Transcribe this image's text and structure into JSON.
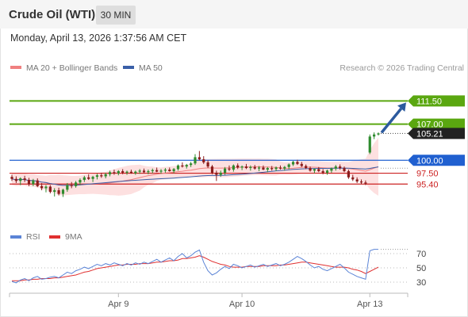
{
  "header": {
    "title": "Crude Oil (WTI)",
    "timeframe": "30 MIN"
  },
  "datetime": "Monday, April 13, 2026 1:37:56 AM CET",
  "legend": {
    "bollinger_label": "MA 20 + Bollinger Bands",
    "ma50_label": "MA 50",
    "rsi_label": "RSI",
    "ma9_label": "9MA",
    "credit": "Research © 2026 Trading Central"
  },
  "colors": {
    "resistance": "#5aa710",
    "support_strong": "#2060d0",
    "support_weak": "#cc2222",
    "candle_up": "#2e8b2e",
    "candle_down": "#8b1c1c",
    "ma20": "#f08080",
    "ma50": "#3a5fa8",
    "rsi": "#5b84d6",
    "rsi_ma": "#e03030",
    "arrow": "#2c5a9e",
    "current": "#444444"
  },
  "chart_data": [
    {
      "type": "candlestick",
      "title": "Crude Oil (WTI)",
      "timeframe": "30 MIN",
      "ylim": [
        87.0,
        116.0
      ],
      "x_ticks": [
        "Apr 9",
        "Apr 10",
        "Apr 13"
      ],
      "current_price": "105.21",
      "levels": [
        {
          "label": "111.50",
          "value": 111.5,
          "kind": "resistance"
        },
        {
          "label": "107.00",
          "value": 107.0,
          "kind": "resistance"
        },
        {
          "label": "100.00",
          "value": 100.0,
          "kind": "support_strong"
        },
        {
          "label": "97.50",
          "value": 97.5,
          "kind": "support_weak"
        },
        {
          "label": "95.40",
          "value": 95.4,
          "kind": "support_weak"
        }
      ],
      "target_arrow": {
        "from": 105.2,
        "to": 111.5
      },
      "candles": [
        [
          96.8,
          97.2,
          96.0,
          96.4
        ],
        [
          96.4,
          96.9,
          95.6,
          96.0
        ],
        [
          96.0,
          96.7,
          95.2,
          96.5
        ],
        [
          96.5,
          97.0,
          95.8,
          96.2
        ],
        [
          96.2,
          96.6,
          95.0,
          95.4
        ],
        [
          95.4,
          96.4,
          95.0,
          96.1
        ],
        [
          96.1,
          96.5,
          94.8,
          95.0
        ],
        [
          95.0,
          95.6,
          94.2,
          94.6
        ],
        [
          94.6,
          95.2,
          93.8,
          94.9
        ],
        [
          94.9,
          95.2,
          93.6,
          93.9
        ],
        [
          93.9,
          94.6,
          93.0,
          94.2
        ],
        [
          94.2,
          94.7,
          93.2,
          93.5
        ],
        [
          93.5,
          94.5,
          92.9,
          94.3
        ],
        [
          94.3,
          95.6,
          93.9,
          95.2
        ],
        [
          95.2,
          95.8,
          94.6,
          95.0
        ],
        [
          95.0,
          96.0,
          94.7,
          95.7
        ],
        [
          95.7,
          96.5,
          95.2,
          96.2
        ],
        [
          96.2,
          97.0,
          95.8,
          96.7
        ],
        [
          96.7,
          97.3,
          96.2,
          96.4
        ],
        [
          96.4,
          97.0,
          95.8,
          96.8
        ],
        [
          96.8,
          97.4,
          96.3,
          97.1
        ],
        [
          97.1,
          97.6,
          96.6,
          96.9
        ],
        [
          96.9,
          97.6,
          96.5,
          97.3
        ],
        [
          97.3,
          98.0,
          96.9,
          97.7
        ],
        [
          97.7,
          98.2,
          97.2,
          97.5
        ],
        [
          97.5,
          98.1,
          97.1,
          97.9
        ],
        [
          97.9,
          98.3,
          97.3,
          97.6
        ],
        [
          97.6,
          98.0,
          97.2,
          97.8
        ],
        [
          97.8,
          98.2,
          97.4,
          97.5
        ],
        [
          97.5,
          98.0,
          97.2,
          97.8
        ],
        [
          97.8,
          98.3,
          97.4,
          98.0
        ],
        [
          98.0,
          98.4,
          97.5,
          97.7
        ],
        [
          97.7,
          98.2,
          97.3,
          97.9
        ],
        [
          97.9,
          98.4,
          97.5,
          98.1
        ],
        [
          98.1,
          98.6,
          97.7,
          97.8
        ],
        [
          97.8,
          98.3,
          97.4,
          98.0
        ],
        [
          98.0,
          98.5,
          97.6,
          98.2
        ],
        [
          98.2,
          98.6,
          97.8,
          97.9
        ],
        [
          97.9,
          98.5,
          97.5,
          98.3
        ],
        [
          98.3,
          99.2,
          98.0,
          99.0
        ],
        [
          99.0,
          99.6,
          98.6,
          98.8
        ],
        [
          98.8,
          99.3,
          98.4,
          99.1
        ],
        [
          99.1,
          99.7,
          98.7,
          99.4
        ],
        [
          99.4,
          101.2,
          99.1,
          100.6
        ],
        [
          100.6,
          101.8,
          100.0,
          100.2
        ],
        [
          100.2,
          100.8,
          99.3,
          99.6
        ],
        [
          99.6,
          100.0,
          98.5,
          98.8
        ],
        [
          98.8,
          99.1,
          97.3,
          97.6
        ],
        [
          97.6,
          98.0,
          96.0,
          97.2
        ],
        [
          97.2,
          98.0,
          96.8,
          97.6
        ],
        [
          97.6,
          98.7,
          97.2,
          98.4
        ],
        [
          98.4,
          99.0,
          97.9,
          98.2
        ],
        [
          98.2,
          99.2,
          97.8,
          99.0
        ],
        [
          99.0,
          99.4,
          98.3,
          98.6
        ],
        [
          98.6,
          99.0,
          98.1,
          98.8
        ],
        [
          98.8,
          99.3,
          98.3,
          98.5
        ],
        [
          98.5,
          99.0,
          98.0,
          98.7
        ],
        [
          98.7,
          99.1,
          98.2,
          98.4
        ],
        [
          98.4,
          98.9,
          97.9,
          98.6
        ],
        [
          98.6,
          99.0,
          98.1,
          98.2
        ],
        [
          98.2,
          98.7,
          97.7,
          98.5
        ],
        [
          98.5,
          98.9,
          98.0,
          98.3
        ],
        [
          98.3,
          98.8,
          97.9,
          98.6
        ],
        [
          98.6,
          99.0,
          98.2,
          98.4
        ],
        [
          98.4,
          98.9,
          98.0,
          98.7
        ],
        [
          98.7,
          99.4,
          98.3,
          99.2
        ],
        [
          99.2,
          99.9,
          98.9,
          99.7
        ],
        [
          99.7,
          100.1,
          99.1,
          99.3
        ],
        [
          99.3,
          99.7,
          98.7,
          98.9
        ],
        [
          98.9,
          99.2,
          98.3,
          98.5
        ],
        [
          98.5,
          98.8,
          97.8,
          98.0
        ],
        [
          98.0,
          98.4,
          97.5,
          98.3
        ],
        [
          98.3,
          98.7,
          97.7,
          97.9
        ],
        [
          97.9,
          98.3,
          97.3,
          97.6
        ],
        [
          97.6,
          98.2,
          97.2,
          98.0
        ],
        [
          98.0,
          98.6,
          97.6,
          98.4
        ],
        [
          98.4,
          99.1,
          98.0,
          98.8
        ],
        [
          98.8,
          99.2,
          98.2,
          98.5
        ],
        [
          98.5,
          98.8,
          97.7,
          97.9
        ],
        [
          97.9,
          98.2,
          96.4,
          96.7
        ],
        [
          96.7,
          97.2,
          96.0,
          96.3
        ],
        [
          96.3,
          96.7,
          95.6,
          95.9
        ],
        [
          95.9,
          96.3,
          95.4,
          95.7
        ],
        [
          95.7,
          96.1,
          95.2,
          95.5
        ],
        [
          101.5,
          105.0,
          101.2,
          104.6
        ],
        [
          104.6,
          105.4,
          104.1,
          105.0
        ],
        [
          105.0,
          105.4,
          104.8,
          105.21
        ]
      ]
    },
    {
      "type": "line",
      "title": "RSI",
      "ylim": [
        20,
        80
      ],
      "y_ticks": [
        30,
        50,
        70
      ],
      "series": [
        {
          "name": "RSI",
          "values": [
            31,
            29,
            33,
            35,
            32,
            36,
            38,
            34,
            35,
            37,
            38,
            36,
            40,
            44,
            42,
            46,
            48,
            51,
            49,
            52,
            55,
            53,
            56,
            54,
            57,
            55,
            53,
            56,
            54,
            57,
            55,
            58,
            56,
            59,
            62,
            58,
            61,
            64,
            60,
            66,
            70,
            64,
            67,
            72,
            75,
            58,
            46,
            40,
            43,
            48,
            52,
            49,
            55,
            53,
            50,
            52,
            54,
            51,
            53,
            55,
            52,
            54,
            56,
            53,
            55,
            58,
            62,
            66,
            63,
            59,
            54,
            50,
            52,
            48,
            46,
            49,
            52,
            55,
            50,
            44,
            41,
            38,
            36,
            34,
            74,
            76,
            76
          ]
        },
        {
          "name": "9MA",
          "values": [
            32,
            32,
            32,
            33,
            33,
            34,
            34,
            35,
            35,
            35,
            36,
            36,
            37,
            38,
            39,
            40,
            42,
            44,
            45,
            47,
            49,
            50,
            51,
            52,
            53,
            54,
            54,
            55,
            55,
            55,
            56,
            56,
            56,
            57,
            58,
            58,
            59,
            60,
            60,
            61,
            63,
            63,
            64,
            65,
            67,
            65,
            62,
            59,
            57,
            55,
            54,
            52,
            51,
            51,
            51,
            52,
            52,
            52,
            52,
            53,
            53,
            53,
            53,
            54,
            54,
            55,
            56,
            57,
            58,
            58,
            57,
            56,
            55,
            54,
            53,
            52,
            51,
            51,
            51,
            50,
            48,
            47,
            45,
            42,
            45,
            48,
            51
          ]
        }
      ]
    }
  ]
}
